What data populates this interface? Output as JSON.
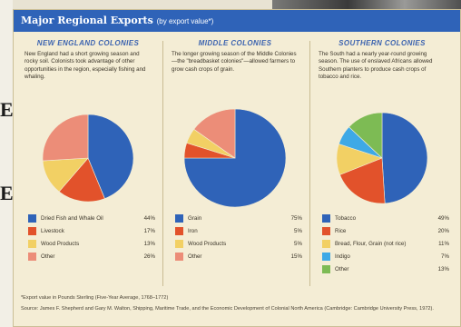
{
  "title_bar": {
    "title": "Major Regional Exports",
    "subtitle": "(by export value*)"
  },
  "side_glyphs": [
    "E",
    "E"
  ],
  "chart_data": [
    {
      "type": "pie",
      "title": "NEW ENGLAND COLONIES",
      "description": "New England had a short growing season and rocky soil. Colonists took advantage of other opportunities in the region, especially fishing and whaling.",
      "categories": [
        "Dried Fish and Whale Oil",
        "Livestock",
        "Wood Products",
        "Other"
      ],
      "values": [
        44,
        17,
        13,
        26
      ],
      "labels": [
        "44%",
        "17%",
        "13%",
        "26%"
      ],
      "colors": [
        "#2f63b8",
        "#e2522b",
        "#f2d064",
        "#ec8d78"
      ]
    },
    {
      "type": "pie",
      "title": "MIDDLE COLONIES",
      "description": "The longer growing season of the Middle Colonies—the \"breadbasket colonies\"—allowed farmers to grow cash crops of grain.",
      "categories": [
        "Grain",
        "Iron",
        "Wood Products",
        "Other"
      ],
      "values": [
        75,
        5,
        5,
        15
      ],
      "labels": [
        "75%",
        "5%",
        "5%",
        "15%"
      ],
      "colors": [
        "#2f63b8",
        "#e2522b",
        "#f2d064",
        "#ec8d78"
      ]
    },
    {
      "type": "pie",
      "title": "SOUTHERN COLONIES",
      "description": "The South had a nearly year-round growing season. The use of enslaved Africans allowed Southern planters to produce cash crops of tobacco and rice.",
      "categories": [
        "Tobacco",
        "Rice",
        "Bread, Flour, Grain (not rice)",
        "Indigo",
        "Other"
      ],
      "values": [
        49,
        20,
        11,
        7,
        13
      ],
      "labels": [
        "49%",
        "20%",
        "11%",
        "7%",
        "13%"
      ],
      "colors": [
        "#2f63b8",
        "#e2522b",
        "#f2d064",
        "#3ea9e6",
        "#7dbb54"
      ]
    }
  ],
  "footnote": "*Export value in Pounds Sterling (Five-Year Average, 1768–1772)",
  "source": "Source: James F. Shepherd and Gary M. Walton, Shipping, Maritime Trade, and the Economic Development of Colonial North America (Cambridge: Cambridge University Press, 1972)."
}
